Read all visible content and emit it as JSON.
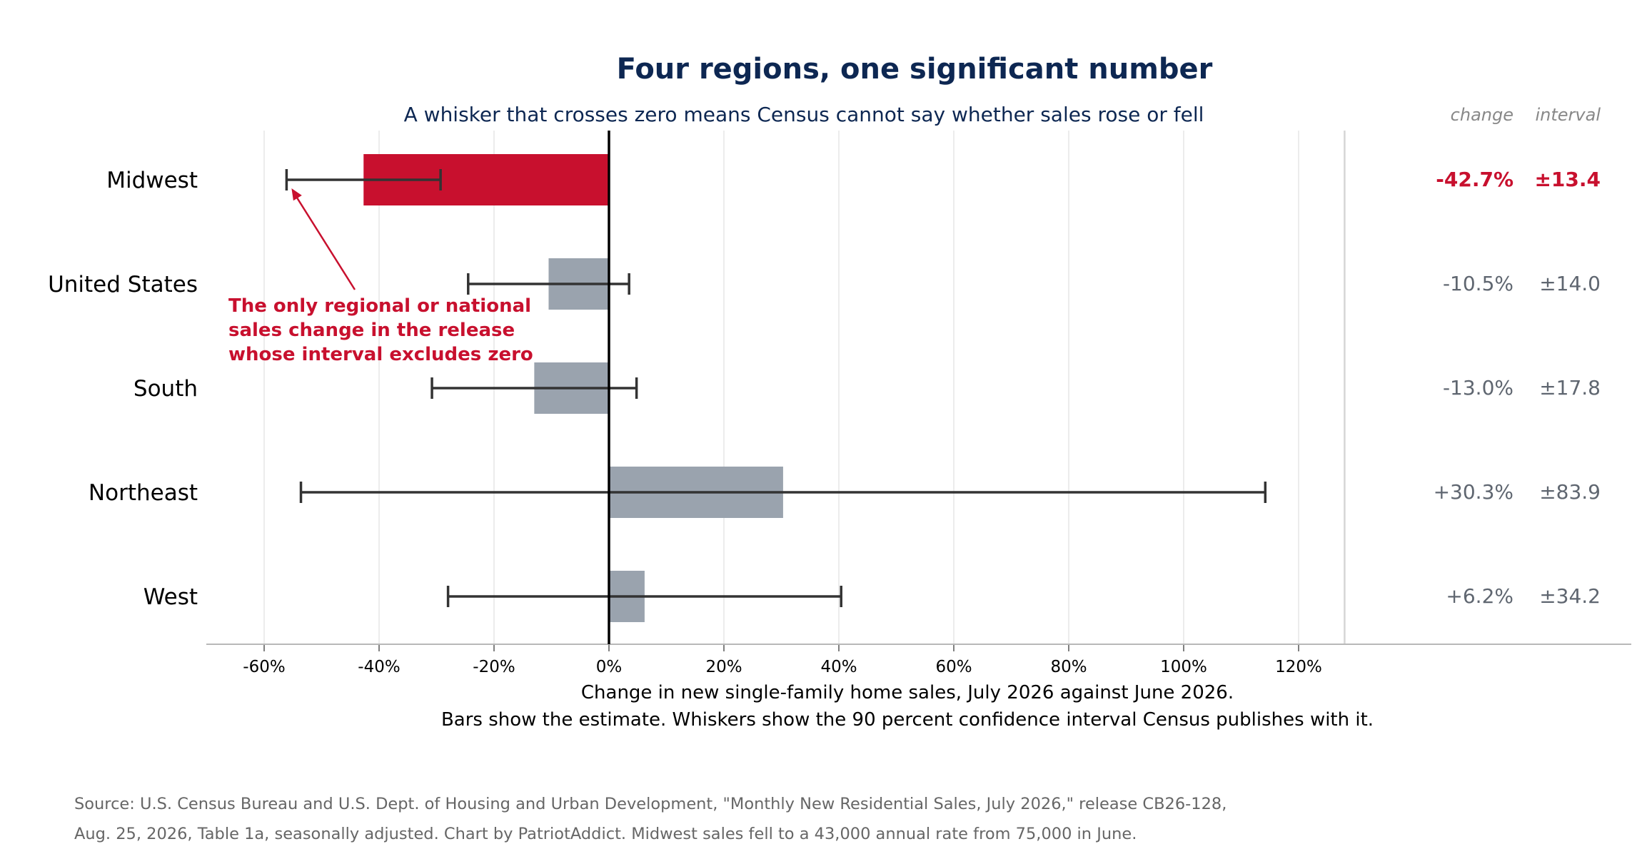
{
  "colors": {
    "title": "#0d2752",
    "highlight": "#c8102e",
    "bar": "#9aa3ae",
    "whisker": "#333333",
    "zero_line": "#000000",
    "grid": "#ececec",
    "muted_text": "#5f6670",
    "header_text": "#888888",
    "source_text": "#666666"
  },
  "chart_data": {
    "type": "bar",
    "orientation": "horizontal",
    "title": "Four regions, one significant number",
    "subtitle": "A whisker that crosses zero means Census cannot say whether sales rose or fell",
    "xlabel": "Change in new single-family home sales, July 2026 against June 2026.",
    "xlabel_note": "Bars show the estimate. Whiskers show the 90 percent confidence interval Census publishes with it.",
    "xlim": [
      -70,
      178
    ],
    "xticks": [
      -60,
      -40,
      -20,
      0,
      20,
      40,
      60,
      80,
      100,
      120
    ],
    "xtick_labels": [
      "-60%",
      "-40%",
      "-20%",
      "0%",
      "20%",
      "40%",
      "60%",
      "80%",
      "100%",
      "120%"
    ],
    "grid": true,
    "categories": [
      "Midwest",
      "United States",
      "South",
      "Northeast",
      "West"
    ],
    "values": [
      -42.7,
      -10.5,
      -13.0,
      30.3,
      6.2
    ],
    "intervals": [
      13.4,
      14.0,
      17.8,
      83.9,
      34.2
    ],
    "highlight": [
      true,
      false,
      false,
      false,
      false
    ],
    "table_headers": {
      "change": "change",
      "interval": "interval"
    },
    "change_labels": [
      "-42.7%",
      "-10.5%",
      "-13.0%",
      "+30.3%",
      "+6.2%"
    ],
    "interval_labels": [
      "±13.4",
      "±14.0",
      "±17.8",
      "±83.9",
      "±34.2"
    ],
    "annotation": {
      "lines": [
        "The only regional or national",
        "sales change in the release",
        "whose interval excludes zero"
      ],
      "points_to": "Midwest"
    }
  },
  "source": {
    "line1": "Source: U.S. Census Bureau and U.S. Dept. of Housing and Urban Development, \"Monthly New Residential Sales, July 2026,\" release CB26-128,",
    "line2": "Aug. 25, 2026, Table 1a, seasonally adjusted. Chart by PatriotAddict. Midwest sales fell to a 43,000 annual rate from 75,000 in June."
  }
}
